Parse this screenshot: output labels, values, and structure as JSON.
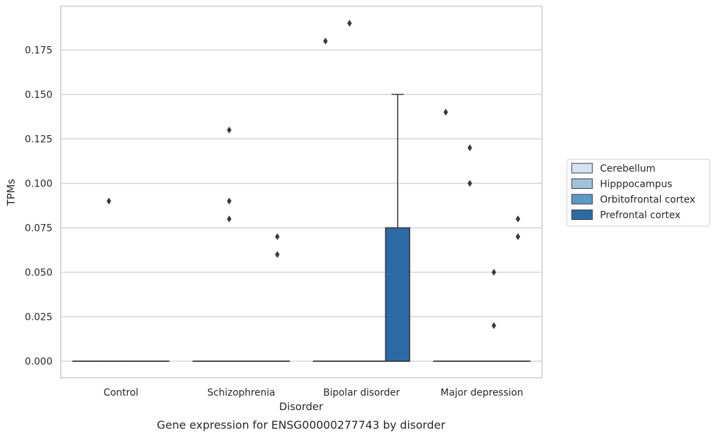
{
  "chart_data": {
    "type": "box",
    "title": "",
    "caption": "Gene expression for ENSG00000277743 by disorder",
    "xlabel": "Disorder",
    "ylabel": "TPMs",
    "ylim": [
      -0.009,
      0.199
    ],
    "yticks": [
      "0.000",
      "0.025",
      "0.050",
      "0.075",
      "0.100",
      "0.125",
      "0.150",
      "0.175"
    ],
    "ytick_values": [
      0,
      0.025,
      0.05,
      0.075,
      0.1,
      0.125,
      0.15,
      0.175
    ],
    "categories": [
      "Control",
      "Schizophrenia",
      "Bipolar disorder",
      "Major depression"
    ],
    "grid": "horizontal",
    "legend_placement": "right",
    "series": [
      {
        "name": "Cerebellum",
        "color": "#d4e3f1",
        "boxes": [
          {
            "q1": 0,
            "median": 0,
            "q3": 0,
            "whisker_low": 0,
            "whisker_high": 0,
            "outliers": []
          },
          {
            "q1": 0,
            "median": 0,
            "q3": 0,
            "whisker_low": 0,
            "whisker_high": 0,
            "outliers": []
          },
          {
            "q1": 0,
            "median": 0,
            "q3": 0,
            "whisker_low": 0,
            "whisker_high": 0,
            "outliers": [
              0.18
            ]
          },
          {
            "q1": 0,
            "median": 0,
            "q3": 0,
            "whisker_low": 0,
            "whisker_high": 0,
            "outliers": [
              0.14
            ]
          }
        ]
      },
      {
        "name": "Hipppocampus",
        "color": "#9fc3dd",
        "boxes": [
          {
            "q1": 0,
            "median": 0,
            "q3": 0,
            "whisker_low": 0,
            "whisker_high": 0,
            "outliers": [
              0.09
            ]
          },
          {
            "q1": 0,
            "median": 0,
            "q3": 0,
            "whisker_low": 0,
            "whisker_high": 0,
            "outliers": [
              0.13,
              0.09,
              0.08
            ]
          },
          {
            "q1": 0,
            "median": 0,
            "q3": 0,
            "whisker_low": 0,
            "whisker_high": 0,
            "outliers": [
              0.19
            ]
          },
          {
            "q1": 0,
            "median": 0,
            "q3": 0,
            "whisker_low": 0,
            "whisker_high": 0,
            "outliers": [
              0.12,
              0.1
            ]
          }
        ]
      },
      {
        "name": "Orbitofrontal cortex",
        "color": "#5b9bc7",
        "boxes": [
          {
            "q1": 0,
            "median": 0,
            "q3": 0,
            "whisker_low": 0,
            "whisker_high": 0,
            "outliers": []
          },
          {
            "q1": 0,
            "median": 0,
            "q3": 0,
            "whisker_low": 0,
            "whisker_high": 0,
            "outliers": []
          },
          {
            "q1": 0,
            "median": 0,
            "q3": 0,
            "whisker_low": 0,
            "whisker_high": 0,
            "outliers": []
          },
          {
            "q1": 0,
            "median": 0,
            "q3": 0,
            "whisker_low": 0,
            "whisker_high": 0,
            "outliers": [
              0.05,
              0.02
            ]
          }
        ]
      },
      {
        "name": "Prefrontal cortex",
        "color": "#2c6aa6",
        "boxes": [
          {
            "q1": 0,
            "median": 0,
            "q3": 0,
            "whisker_low": 0,
            "whisker_high": 0,
            "outliers": []
          },
          {
            "q1": 0,
            "median": 0,
            "q3": 0,
            "whisker_low": 0,
            "whisker_high": 0,
            "outliers": [
              0.07,
              0.06
            ]
          },
          {
            "q1": 0,
            "median": 0,
            "q3": 0.075,
            "whisker_low": 0,
            "whisker_high": 0.15,
            "outliers": []
          },
          {
            "q1": 0,
            "median": 0,
            "q3": 0,
            "whisker_low": 0,
            "whisker_high": 0,
            "outliers": [
              0.08,
              0.07
            ]
          }
        ]
      }
    ]
  }
}
